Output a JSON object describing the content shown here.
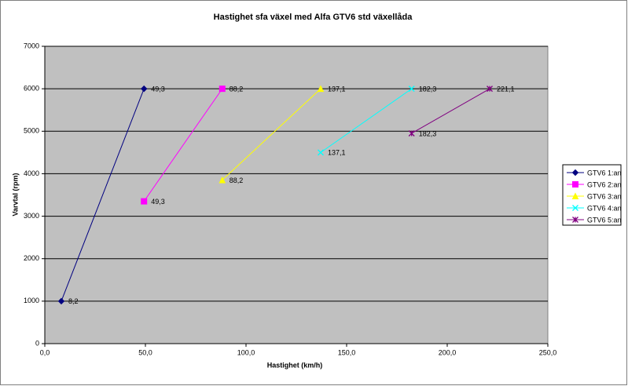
{
  "chart_data": {
    "type": "line",
    "title": "Hastighet sfa växel med Alfa  GTV6 std växellåda",
    "x_label": "Hastighet (km/h)",
    "y_label": "Varvtal (rpm)",
    "xlim": [
      0,
      250
    ],
    "xticks": [
      {
        "value": 0,
        "label": "0,0"
      },
      {
        "value": 50,
        "label": "50,0"
      },
      {
        "value": 100,
        "label": "100,0"
      },
      {
        "value": 150,
        "label": "150,0"
      },
      {
        "value": 200,
        "label": "200,0"
      },
      {
        "value": 250,
        "label": "250,0"
      }
    ],
    "ylim": [
      0,
      7000
    ],
    "yticks": [
      0,
      1000,
      2000,
      3000,
      4000,
      5000,
      6000,
      7000
    ],
    "grid": true,
    "legend": "right",
    "series": [
      {
        "name": "GTV6 1:an",
        "color": "#000080",
        "marker": "diamond",
        "x": [
          8.2,
          49.3
        ],
        "values": [
          1000,
          6000
        ],
        "x_labels": [
          "8,2",
          "49,3"
        ]
      },
      {
        "name": "GTV6 2:an",
        "color": "#ff00ff",
        "marker": "square",
        "x": [
          49.3,
          88.2
        ],
        "values": [
          3350,
          6000
        ],
        "x_labels": [
          "49,3",
          "88,2"
        ]
      },
      {
        "name": "GTV6 3:an",
        "color": "#ffff00",
        "marker": "triangle",
        "x": [
          88.2,
          137.1
        ],
        "values": [
          3850,
          6000
        ],
        "x_labels": [
          "88,2",
          "137,1"
        ]
      },
      {
        "name": "GTV6 4:an",
        "color": "#00ffff",
        "marker": "cross",
        "x": [
          137.1,
          182.3
        ],
        "values": [
          4500,
          6000
        ],
        "x_labels": [
          "137,1",
          "182,3"
        ]
      },
      {
        "name": "GTV6 5:an",
        "color": "#800080",
        "marker": "star",
        "x": [
          182.3,
          221.1
        ],
        "values": [
          4950,
          6000
        ],
        "x_labels": [
          "182,3",
          "221,1"
        ]
      }
    ]
  }
}
